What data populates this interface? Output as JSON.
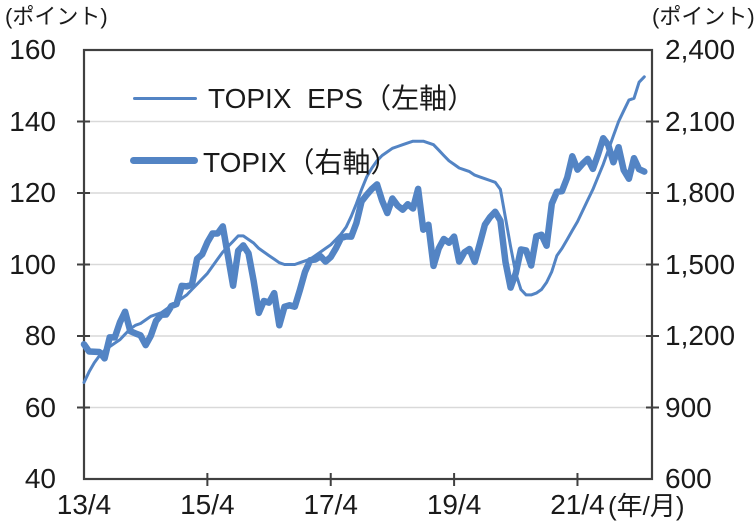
{
  "chart_data": {
    "type": "line",
    "title": "",
    "x_axis": {
      "start": "2013/4",
      "end": "2022/5",
      "frequency": "monthly",
      "unit_label": "(年/月)",
      "tick_months": [
        0,
        24,
        48,
        72,
        96
      ],
      "tick_labels": [
        "13/4",
        "15/4",
        "17/4",
        "19/4",
        "21/4"
      ],
      "domain_months": [
        0,
        110.5
      ]
    },
    "left_axis": {
      "unit_label": "(ポイント)",
      "min": 40,
      "max": 160,
      "tick_values": [
        160,
        140,
        120,
        100,
        80,
        60,
        40
      ],
      "tick_labels": [
        "160",
        "140",
        "120",
        "100",
        "80",
        "60",
        "40"
      ]
    },
    "right_axis": {
      "unit_label": "(ポイント)",
      "min": 600,
      "max": 2400,
      "tick_values": [
        2400,
        2100,
        1800,
        1500,
        1200,
        900,
        600
      ],
      "tick_labels": [
        "2,400",
        "2,100",
        "1,800",
        "1,500",
        "1,200",
        "900",
        "600"
      ]
    },
    "grid": "horizontal-only",
    "legend_position": "inside-top-left",
    "series": [
      {
        "name": "TOPIX  EPS（左軸）",
        "axis": "left",
        "style": "thin",
        "values": [
          67,
          70,
          72.5,
          74.5,
          76,
          77,
          78,
          79,
          80.5,
          82,
          83,
          83.5,
          84.5,
          85.5,
          86,
          86.5,
          87.5,
          88.5,
          89.5,
          90.5,
          91.5,
          93,
          94.5,
          96,
          97.5,
          99.5,
          101.5,
          103.5,
          105,
          106.5,
          108,
          108,
          107,
          106,
          104.5,
          103.5,
          102.5,
          101.5,
          100.5,
          100,
          100,
          100,
          100.5,
          101,
          101.5,
          102.5,
          103.5,
          104.5,
          105.5,
          107,
          108.5,
          110.5,
          113.5,
          117,
          121,
          124.5,
          127,
          129,
          130.5,
          131.5,
          132.5,
          133,
          133.5,
          134,
          134.5,
          134.5,
          134.5,
          134,
          133.5,
          132,
          130.5,
          129,
          128,
          127,
          126.5,
          126,
          125,
          124.5,
          124,
          123.5,
          123,
          121,
          113,
          105,
          97.5,
          93,
          91.5,
          91.5,
          92,
          93,
          95,
          98,
          102.5,
          104.5,
          107,
          109.5,
          112,
          115,
          118,
          121,
          124.5,
          128,
          132,
          136,
          140,
          143,
          146,
          146.5,
          151,
          152.5
        ]
      },
      {
        "name": "TOPIX（右軸）",
        "axis": "right",
        "style": "thick",
        "values": [
          1165,
          1135,
          1134,
          1133,
          1106,
          1194,
          1194,
          1258,
          1302,
          1220,
          1211,
          1203,
          1162,
          1201,
          1263,
          1289,
          1290,
          1326,
          1334,
          1410,
          1408,
          1415,
          1524,
          1543,
          1593,
          1630,
          1630,
          1660,
          1537,
          1411,
          1558,
          1580,
          1547,
          1432,
          1297,
          1347,
          1340,
          1380,
          1245,
          1323,
          1329,
          1323,
          1393,
          1469,
          1518,
          1521,
          1535,
          1512,
          1531,
          1568,
          1611,
          1618,
          1617,
          1674,
          1765,
          1792,
          1817,
          1836,
          1768,
          1716,
          1777,
          1747,
          1730,
          1753,
          1735,
          1817,
          1646,
          1667,
          1494,
          1567,
          1607,
          1591,
          1617,
          1512,
          1551,
          1565,
          1511,
          1587,
          1667,
          1699,
          1721,
          1684,
          1510,
          1403,
          1464,
          1563,
          1559,
          1496,
          1618,
          1625,
          1579,
          1755,
          1805,
          1808,
          1864,
          1954,
          1898,
          1923,
          1943,
          1901,
          1961,
          2030,
          2001,
          1929,
          1992,
          1896,
          1860,
          1946,
          1900,
          1890
        ]
      }
    ],
    "colors": {
      "line": "#5384c4",
      "axis": "#404040",
      "grid": "#d9d9d9",
      "text": "#1a1a1a"
    }
  }
}
